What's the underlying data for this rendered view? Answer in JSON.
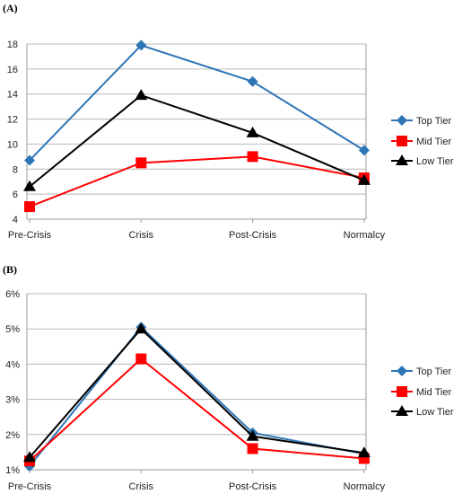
{
  "chart_data": [
    {
      "type": "line",
      "panel_label": "(A)",
      "categories": [
        "Pre-Crisis",
        "Crisis",
        "Post-Crisis",
        "Normalcy"
      ],
      "ylim": [
        4,
        18
      ],
      "yticks": [
        "4",
        "6",
        "8",
        "10",
        "12",
        "14",
        "16",
        "18"
      ],
      "grid": true,
      "legend": "right",
      "series": [
        {
          "name": "Top Tier",
          "values": [
            8.7,
            17.9,
            15.0,
            9.5
          ],
          "color": "#2E75B6",
          "marker": "diamond"
        },
        {
          "name": "Mid Tier",
          "values": [
            5.0,
            8.5,
            9.0,
            7.3
          ],
          "color": "#FF0000",
          "marker": "square"
        },
        {
          "name": "Low Tier",
          "values": [
            6.6,
            13.9,
            10.9,
            7.1
          ],
          "color": "#000000",
          "marker": "triangle"
        }
      ]
    },
    {
      "type": "line",
      "panel_label": "(B)",
      "categories": [
        "Pre-Crisis",
        "Crisis",
        "Post-Crisis",
        "Normalcy"
      ],
      "ylim": [
        1,
        6
      ],
      "yticks": [
        "1%",
        "2%",
        "3%",
        "4%",
        "5%",
        "6%"
      ],
      "grid": true,
      "legend": "right",
      "series": [
        {
          "name": "Top Tier",
          "values": [
            1.1,
            5.05,
            2.05,
            1.45
          ],
          "color": "#2E75B6",
          "marker": "diamond"
        },
        {
          "name": "Mid Tier",
          "values": [
            1.25,
            4.15,
            1.6,
            1.32
          ],
          "color": "#FF0000",
          "marker": "square"
        },
        {
          "name": "Low Tier",
          "values": [
            1.35,
            5.0,
            1.95,
            1.48
          ],
          "color": "#000000",
          "marker": "triangle"
        }
      ]
    }
  ]
}
